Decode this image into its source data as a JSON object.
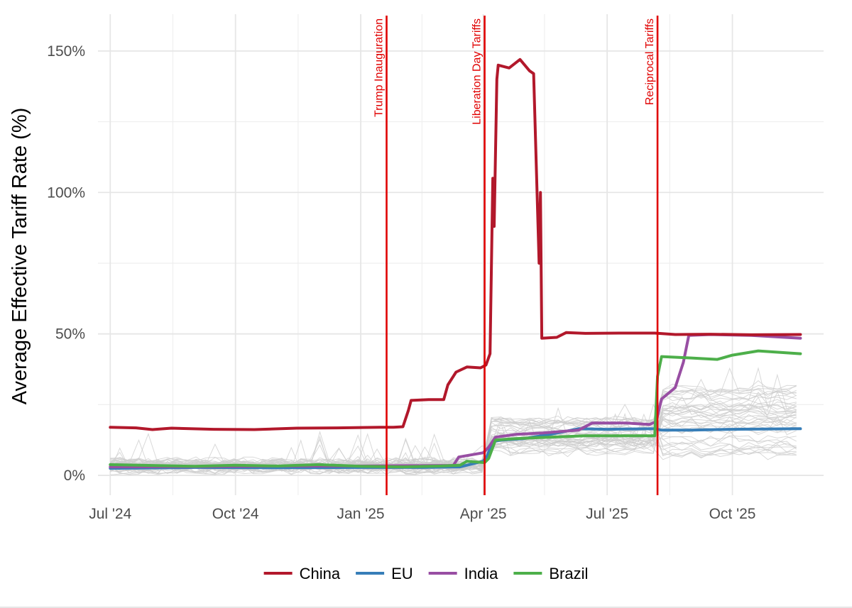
{
  "chart_data": {
    "type": "line",
    "ylabel": "Average Effective Tariff Rate (%)",
    "xlabel": "",
    "y_unit": "%",
    "ylim": [
      -7,
      163
    ],
    "xlim": [
      "2024-06-22",
      "2025-12-07"
    ],
    "y_ticks": [
      {
        "value": 0,
        "label": "0%"
      },
      {
        "value": 50,
        "label": "50%"
      },
      {
        "value": 100,
        "label": "100%"
      },
      {
        "value": 150,
        "label": "150%"
      }
    ],
    "x_ticks": [
      {
        "date": "2024-07-01",
        "label": "Jul '24"
      },
      {
        "date": "2024-10-01",
        "label": "Oct '24"
      },
      {
        "date": "2025-01-01",
        "label": "Jan '25"
      },
      {
        "date": "2025-04-01",
        "label": "Apr '25"
      },
      {
        "date": "2025-07-01",
        "label": "Jul '25"
      },
      {
        "date": "2025-10-01",
        "label": "Oct '25"
      }
    ],
    "grid": true,
    "legend_position": "bottom",
    "events": [
      {
        "date": "2025-01-20",
        "label": "Trump Inauguration"
      },
      {
        "date": "2025-04-02",
        "label": "Liberation Day Tariffs"
      },
      {
        "date": "2025-08-07",
        "label": "Reciprocal Tariffs"
      }
    ],
    "event_color": "#e00000",
    "background_series_color": "#cccccc",
    "series": [
      {
        "name": "China",
        "color": "#b2182b",
        "points": [
          [
            "2024-07-01",
            17.0
          ],
          [
            "2024-07-20",
            16.8
          ],
          [
            "2024-08-01",
            16.2
          ],
          [
            "2024-08-15",
            16.7
          ],
          [
            "2024-09-15",
            16.3
          ],
          [
            "2024-10-15",
            16.2
          ],
          [
            "2024-11-15",
            16.7
          ],
          [
            "2024-12-15",
            16.8
          ],
          [
            "2025-01-15",
            17.0
          ],
          [
            "2025-01-25",
            17.0
          ],
          [
            "2025-02-01",
            17.2
          ],
          [
            "2025-02-05",
            23.0
          ],
          [
            "2025-02-07",
            26.5
          ],
          [
            "2025-02-20",
            26.8
          ],
          [
            "2025-03-03",
            26.8
          ],
          [
            "2025-03-06",
            32.0
          ],
          [
            "2025-03-12",
            36.5
          ],
          [
            "2025-03-20",
            38.3
          ],
          [
            "2025-03-30",
            38.0
          ],
          [
            "2025-04-03",
            39.0
          ],
          [
            "2025-04-06",
            43.0
          ],
          [
            "2025-04-08",
            105.0
          ],
          [
            "2025-04-09",
            88.0
          ],
          [
            "2025-04-11",
            140.0
          ],
          [
            "2025-04-12",
            145.0
          ],
          [
            "2025-04-20",
            144.0
          ],
          [
            "2025-04-28",
            147.0
          ],
          [
            "2025-05-05",
            143.0
          ],
          [
            "2025-05-08",
            142.0
          ],
          [
            "2025-05-12",
            75.0
          ],
          [
            "2025-05-13",
            100.0
          ],
          [
            "2025-05-14",
            48.5
          ],
          [
            "2025-05-25",
            48.8
          ],
          [
            "2025-06-01",
            50.5
          ],
          [
            "2025-06-15",
            50.2
          ],
          [
            "2025-07-10",
            50.3
          ],
          [
            "2025-08-05",
            50.3
          ],
          [
            "2025-08-20",
            49.8
          ],
          [
            "2025-09-15",
            49.9
          ],
          [
            "2025-10-15",
            49.7
          ],
          [
            "2025-11-20",
            49.8
          ]
        ]
      },
      {
        "name": "EU",
        "color": "#377eb8",
        "points": [
          [
            "2024-07-01",
            2.5
          ],
          [
            "2024-09-01",
            2.8
          ],
          [
            "2024-11-01",
            2.7
          ],
          [
            "2025-01-01",
            2.8
          ],
          [
            "2025-02-15",
            2.8
          ],
          [
            "2025-03-15",
            3.0
          ],
          [
            "2025-04-01",
            5.0
          ],
          [
            "2025-04-04",
            7.0
          ],
          [
            "2025-04-08",
            12.0
          ],
          [
            "2025-04-15",
            12.5
          ],
          [
            "2025-05-01",
            13.0
          ],
          [
            "2025-05-20",
            14.5
          ],
          [
            "2025-06-10",
            16.5
          ],
          [
            "2025-07-01",
            16.3
          ],
          [
            "2025-08-05",
            16.5
          ],
          [
            "2025-08-10",
            16.0
          ],
          [
            "2025-09-01",
            16.0
          ],
          [
            "2025-10-01",
            16.3
          ],
          [
            "2025-11-20",
            16.5
          ]
        ]
      },
      {
        "name": "India",
        "color": "#984ea3",
        "points": [
          [
            "2024-07-01",
            3.0
          ],
          [
            "2024-09-01",
            3.1
          ],
          [
            "2024-11-01",
            3.3
          ],
          [
            "2025-01-01",
            3.3
          ],
          [
            "2025-02-01",
            3.4
          ],
          [
            "2025-03-10",
            3.5
          ],
          [
            "2025-03-14",
            6.5
          ],
          [
            "2025-04-01",
            8.0
          ],
          [
            "2025-04-05",
            10.0
          ],
          [
            "2025-04-10",
            13.5
          ],
          [
            "2025-04-25",
            14.5
          ],
          [
            "2025-05-15",
            15.0
          ],
          [
            "2025-06-10",
            16.0
          ],
          [
            "2025-06-20",
            18.5
          ],
          [
            "2025-07-15",
            18.5
          ],
          [
            "2025-08-01",
            18.0
          ],
          [
            "2025-08-06",
            19.0
          ],
          [
            "2025-08-10",
            27.0
          ],
          [
            "2025-08-20",
            31.0
          ],
          [
            "2025-08-26",
            40.0
          ],
          [
            "2025-08-30",
            49.5
          ],
          [
            "2025-09-15",
            49.8
          ],
          [
            "2025-10-15",
            49.5
          ],
          [
            "2025-11-20",
            48.5
          ]
        ]
      },
      {
        "name": "Brazil",
        "color": "#4daf4a",
        "points": [
          [
            "2024-07-01",
            3.8
          ],
          [
            "2024-08-01",
            3.5
          ],
          [
            "2024-09-01",
            3.2
          ],
          [
            "2024-10-01",
            3.6
          ],
          [
            "2024-11-01",
            3.3
          ],
          [
            "2024-12-01",
            3.8
          ],
          [
            "2025-01-01",
            3.2
          ],
          [
            "2025-02-01",
            3.0
          ],
          [
            "2025-03-01",
            3.3
          ],
          [
            "2025-03-15",
            3.6
          ],
          [
            "2025-03-20",
            5.0
          ],
          [
            "2025-04-02",
            4.5
          ],
          [
            "2025-04-05",
            6.0
          ],
          [
            "2025-04-10",
            12.5
          ],
          [
            "2025-04-25",
            13.0
          ],
          [
            "2025-05-20",
            13.5
          ],
          [
            "2025-06-15",
            14.0
          ],
          [
            "2025-07-15",
            14.0
          ],
          [
            "2025-08-05",
            14.0
          ],
          [
            "2025-08-07",
            35.0
          ],
          [
            "2025-08-10",
            42.0
          ],
          [
            "2025-09-01",
            41.5
          ],
          [
            "2025-09-20",
            41.0
          ],
          [
            "2025-10-01",
            42.5
          ],
          [
            "2025-10-20",
            44.0
          ],
          [
            "2025-11-20",
            43.0
          ]
        ]
      }
    ]
  }
}
